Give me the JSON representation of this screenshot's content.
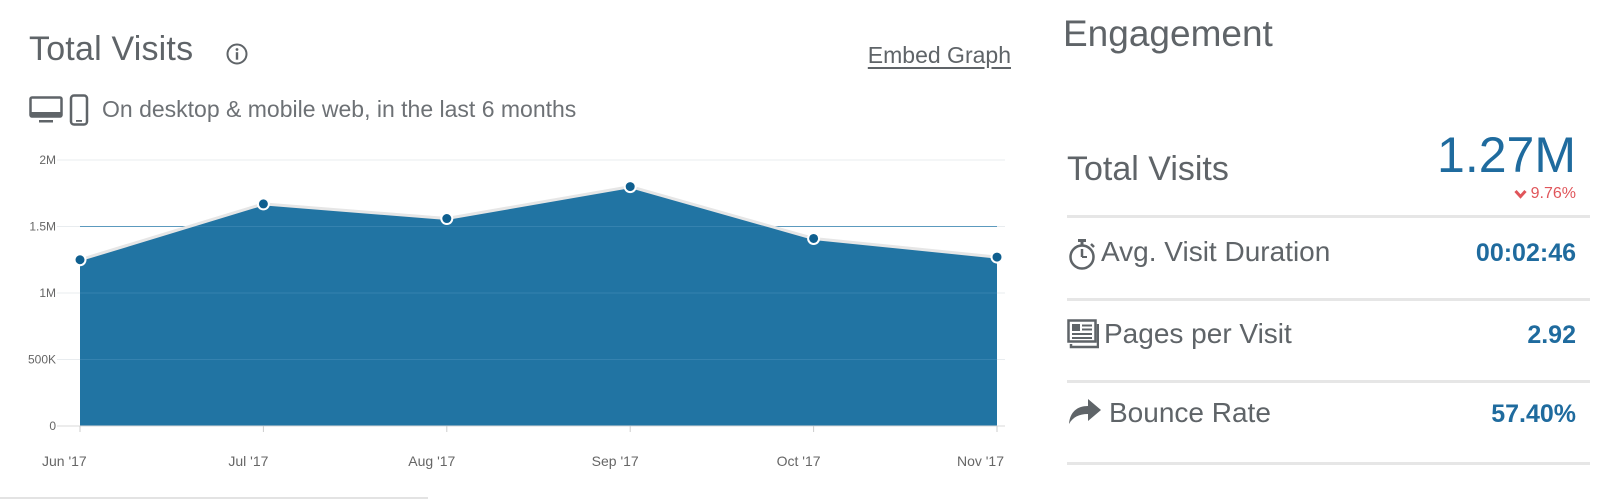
{
  "header": {
    "title": "Total Visits",
    "embed_label": "Embed Graph",
    "subtitle": "On desktop & mobile web, in the last 6 months"
  },
  "chart_data": {
    "type": "area",
    "categories": [
      "Jun '17",
      "Jul '17",
      "Aug '17",
      "Sep '17",
      "Oct '17",
      "Nov '17"
    ],
    "values": [
      1250000,
      1670000,
      1560000,
      1800000,
      1410000,
      1270000
    ],
    "ylim": [
      0,
      2000000
    ],
    "yticks": [
      0,
      500000,
      1000000,
      1500000,
      2000000
    ],
    "ytick_labels": [
      "0",
      "500K",
      "1M",
      "1.5M",
      "2M"
    ],
    "grid": true,
    "colors": {
      "area": "#2174a3",
      "line": "#e6e6e6",
      "marker": "#0f5f8f",
      "grid": "#e8ecef",
      "grid_over_area": "#3a86b2"
    }
  },
  "engagement": {
    "title": "Engagement",
    "total_visits": {
      "label": "Total Visits",
      "value": "1.27M",
      "change": "9.76%",
      "change_direction": "down",
      "icon": "chevron-down-icon"
    },
    "metrics": [
      {
        "key": "duration",
        "label": "Avg. Visit Duration",
        "value": "00:02:46",
        "icon": "stopwatch-icon"
      },
      {
        "key": "pages",
        "label": "Pages per Visit",
        "value": "2.92",
        "icon": "pages-icon"
      },
      {
        "key": "bounce",
        "label": "Bounce Rate",
        "value": "57.40%",
        "icon": "bounce-arrow-icon"
      }
    ]
  },
  "colors": {
    "accent": "#1f6b9e",
    "negative": "#e0555a",
    "text": "#5f6468"
  }
}
